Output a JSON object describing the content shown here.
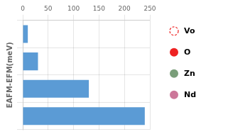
{
  "chart_data": {
    "type": "bar",
    "orientation": "horizontal",
    "categories": [
      null,
      null,
      null,
      null
    ],
    "values": [
      10,
      30,
      130,
      240
    ],
    "color": "#5b9bd5",
    "xlim": [
      0,
      250
    ],
    "xticks": [
      0,
      50,
      100,
      150,
      200,
      250
    ],
    "ylabel": "EAFM-EFM(meV)",
    "grid": true,
    "tick_labels": "x",
    "annotations": [
      {
        "text": "Vo",
        "color": "#ee2222",
        "marker": "circle",
        "line_style": "dashed"
      },
      {
        "text": "O",
        "color": "#ee2222",
        "marker": "circle"
      },
      {
        "text": "Zn",
        "color": "#7a9e7a",
        "marker": "circle"
      },
      {
        "text": "Nd",
        "color": "#cc7799",
        "marker": "circle"
      }
    ]
  }
}
